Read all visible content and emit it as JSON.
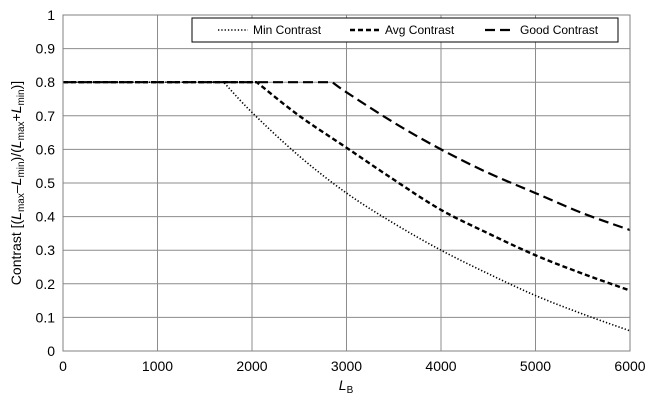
{
  "chart_data": {
    "type": "line",
    "xlim": [
      0,
      6000
    ],
    "ylim": [
      0,
      1
    ],
    "x_ticks": [
      "0",
      "1000",
      "2000",
      "3000",
      "4000",
      "5000",
      "6000"
    ],
    "y_ticks": [
      "0",
      "0.1",
      "0.2",
      "0.3",
      "0.4",
      "0.5",
      "0.6",
      "0.7",
      "0.8",
      "0.9",
      "1"
    ],
    "xlabel": {
      "main": "L",
      "sub": "B"
    },
    "ylabel": {
      "parts": [
        {
          "t": "Contrast [(",
          "s": "n"
        },
        {
          "t": "L",
          "s": "i"
        },
        {
          "t": "max",
          "s": "sub"
        },
        {
          "t": "–",
          "s": "n"
        },
        {
          "t": "L",
          "s": "i"
        },
        {
          "t": "min",
          "s": "sub"
        },
        {
          "t": ")/(",
          "s": "n"
        },
        {
          "t": "L",
          "s": "i"
        },
        {
          "t": "max",
          "s": "sub"
        },
        {
          "t": "+",
          "s": "n"
        },
        {
          "t": "L",
          "s": "i"
        },
        {
          "t": "min",
          "s": "sub"
        },
        {
          "t": ")]",
          "s": "n"
        }
      ]
    },
    "grid": true,
    "legend_position": "top-right",
    "series": [
      {
        "name": "Min Contrast",
        "dash": "dotted",
        "x": [
          0,
          1700,
          2000,
          2500,
          3000,
          3500,
          4000,
          4500,
          5000,
          5500,
          6000
        ],
        "y": [
          0.8,
          0.8,
          0.71,
          0.58,
          0.47,
          0.38,
          0.3,
          0.23,
          0.165,
          0.11,
          0.06
        ]
      },
      {
        "name": "Avg Contrast",
        "dash": "short-dash",
        "x": [
          0,
          2050,
          2500,
          3000,
          3500,
          4000,
          4500,
          5000,
          5500,
          6000
        ],
        "y": [
          0.8,
          0.8,
          0.7,
          0.605,
          0.51,
          0.42,
          0.35,
          0.285,
          0.23,
          0.18
        ]
      },
      {
        "name": "Good Contrast",
        "dash": "long-dash",
        "x": [
          0,
          2850,
          3000,
          3500,
          4000,
          4500,
          5000,
          5500,
          6000
        ],
        "y": [
          0.8,
          0.8,
          0.77,
          0.68,
          0.6,
          0.53,
          0.47,
          0.41,
          0.36
        ]
      }
    ]
  }
}
